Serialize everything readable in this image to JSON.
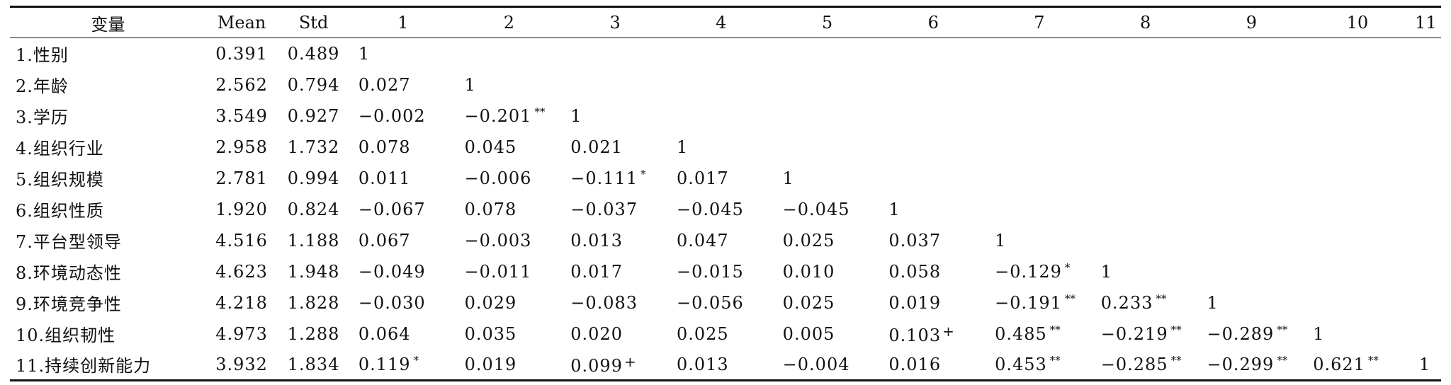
{
  "headers": [
    "变量",
    "Mean",
    "Std",
    "1",
    "2",
    "3",
    "4",
    "5",
    "6",
    "7",
    "8",
    "9",
    "10",
    "11"
  ],
  "rows": [
    {
      "variable": "1.性别",
      "mean": "0.391",
      "std": "0.489",
      "cells": [
        {
          "v": "1",
          "s": ""
        }
      ]
    },
    {
      "variable": "2.年龄",
      "mean": "2.562",
      "std": "0.794",
      "cells": [
        {
          "v": "0.027",
          "s": ""
        },
        {
          "v": "1",
          "s": ""
        }
      ]
    },
    {
      "variable": "3.学历",
      "mean": "3.549",
      "std": "0.927",
      "cells": [
        {
          "v": "−0.002",
          "s": ""
        },
        {
          "v": "−0.201",
          "s": "**"
        },
        {
          "v": "1",
          "s": ""
        }
      ]
    },
    {
      "variable": "4.组织行业",
      "mean": "2.958",
      "std": "1.732",
      "cells": [
        {
          "v": "0.078",
          "s": ""
        },
        {
          "v": "0.045",
          "s": ""
        },
        {
          "v": "0.021",
          "s": ""
        },
        {
          "v": "1",
          "s": ""
        }
      ]
    },
    {
      "variable": "5.组织规模",
      "mean": "2.781",
      "std": "0.994",
      "cells": [
        {
          "v": "0.011",
          "s": ""
        },
        {
          "v": "−0.006",
          "s": ""
        },
        {
          "v": "−0.111",
          "s": "*"
        },
        {
          "v": "0.017",
          "s": ""
        },
        {
          "v": "1",
          "s": ""
        }
      ]
    },
    {
      "variable": "6.组织性质",
      "mean": "1.920",
      "std": "0.824",
      "cells": [
        {
          "v": "−0.067",
          "s": ""
        },
        {
          "v": "0.078",
          "s": ""
        },
        {
          "v": "−0.037",
          "s": ""
        },
        {
          "v": "−0.045",
          "s": ""
        },
        {
          "v": "−0.045",
          "s": ""
        },
        {
          "v": "1",
          "s": ""
        }
      ]
    },
    {
      "variable": "7.平台型领导",
      "mean": "4.516",
      "std": "1.188",
      "cells": [
        {
          "v": "0.067",
          "s": ""
        },
        {
          "v": "−0.003",
          "s": ""
        },
        {
          "v": "0.013",
          "s": ""
        },
        {
          "v": "0.047",
          "s": ""
        },
        {
          "v": "0.025",
          "s": ""
        },
        {
          "v": "0.037",
          "s": ""
        },
        {
          "v": "1",
          "s": ""
        }
      ]
    },
    {
      "variable": "8.环境动态性",
      "mean": "4.623",
      "std": "1.948",
      "cells": [
        {
          "v": "−0.049",
          "s": ""
        },
        {
          "v": "−0.011",
          "s": ""
        },
        {
          "v": "0.017",
          "s": ""
        },
        {
          "v": "−0.015",
          "s": ""
        },
        {
          "v": "0.010",
          "s": ""
        },
        {
          "v": "0.058",
          "s": ""
        },
        {
          "v": "−0.129",
          "s": "*"
        },
        {
          "v": "1",
          "s": ""
        }
      ]
    },
    {
      "variable": "9.环境竞争性",
      "mean": "4.218",
      "std": "1.828",
      "cells": [
        {
          "v": "−0.030",
          "s": ""
        },
        {
          "v": "0.029",
          "s": ""
        },
        {
          "v": "−0.083",
          "s": ""
        },
        {
          "v": "−0.056",
          "s": ""
        },
        {
          "v": "0.025",
          "s": ""
        },
        {
          "v": "0.019",
          "s": ""
        },
        {
          "v": "−0.191",
          "s": "**"
        },
        {
          "v": "0.233",
          "s": "**"
        },
        {
          "v": "1",
          "s": ""
        }
      ]
    },
    {
      "variable": "10.组织韧性",
      "mean": "4.973",
      "std": "1.288",
      "cells": [
        {
          "v": "0.064",
          "s": ""
        },
        {
          "v": "0.035",
          "s": ""
        },
        {
          "v": "0.020",
          "s": ""
        },
        {
          "v": "0.025",
          "s": ""
        },
        {
          "v": "0.005",
          "s": ""
        },
        {
          "v": "0.103",
          "s": "+"
        },
        {
          "v": "0.485",
          "s": "**"
        },
        {
          "v": "−0.219",
          "s": "**"
        },
        {
          "v": "−0.289",
          "s": "**"
        },
        {
          "v": "1",
          "s": ""
        }
      ]
    },
    {
      "variable": "11.持续创新能力",
      "mean": "3.932",
      "std": "1.834",
      "cells": [
        {
          "v": "0.119",
          "s": "*"
        },
        {
          "v": "0.019",
          "s": ""
        },
        {
          "v": "0.099",
          "s": "+"
        },
        {
          "v": "0.013",
          "s": ""
        },
        {
          "v": "−0.004",
          "s": ""
        },
        {
          "v": "0.016",
          "s": ""
        },
        {
          "v": "0.453",
          "s": "**"
        },
        {
          "v": "−0.285",
          "s": "**"
        },
        {
          "v": "−0.299",
          "s": "**"
        },
        {
          "v": "0.621",
          "s": "**"
        },
        {
          "v": "1",
          "s": ""
        }
      ]
    }
  ]
}
